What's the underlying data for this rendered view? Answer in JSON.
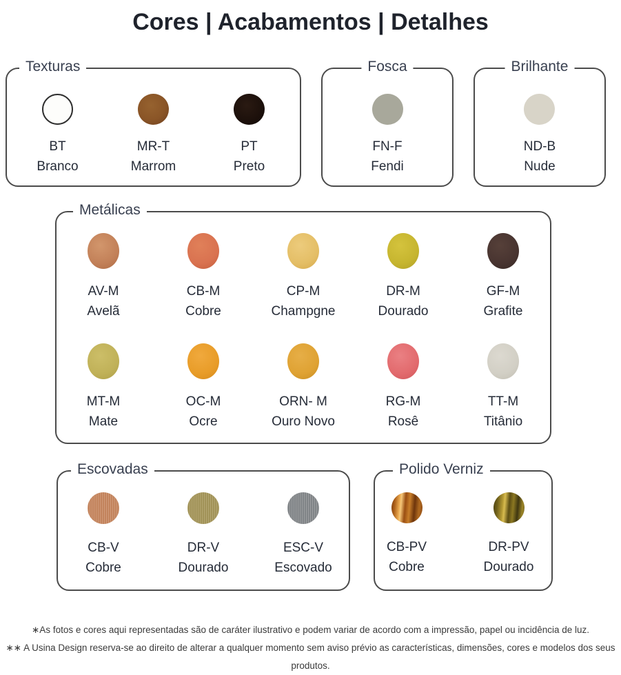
{
  "title": "Cores | Acabamentos | Detalhes",
  "groups": [
    {
      "label": "Texturas",
      "swatches": [
        {
          "code": "BT",
          "name": "Branco",
          "background": "#fdfdfb",
          "outline": true
        },
        {
          "code": "MR-T",
          "name": "Marrom",
          "background": "radial-gradient(circle at 42% 38%, #96622f, #8a5527 55%, #6f4120 95%)"
        },
        {
          "code": "PT",
          "name": "Preto",
          "background": "radial-gradient(circle at 42% 38%, #2a1a12, #1c100b 60%, #120a06 95%)"
        }
      ]
    },
    {
      "label": "Fosca",
      "swatches": [
        {
          "code": "FN-F",
          "name": "Fendi",
          "background": "#a8a89b"
        }
      ]
    },
    {
      "label": "Brilhante",
      "swatches": [
        {
          "code": "ND-B",
          "name": "Nude",
          "background": "#d8d4c8"
        }
      ]
    },
    {
      "label": "Metálicas",
      "swatches": [
        {
          "code": "AV-M",
          "name": "Avelã",
          "background": "radial-gradient(circle at 40% 35%, #d2966c, #c28058 60%, #b06d46 95%)"
        },
        {
          "code": "CB-M",
          "name": "Cobre",
          "background": "radial-gradient(circle at 40% 35%, #e08059, #d97250 60%, #c65f3e 95%)"
        },
        {
          "code": "CP-M",
          "name": "Champgne",
          "background": "radial-gradient(circle at 40% 35%, #eccb7c, #e4be66 60%, #d7ab4e 95%)"
        },
        {
          "code": "DR-M",
          "name": "Dourado",
          "background": "radial-gradient(circle at 40% 35%, #d4c33d, #c6b52f 60%, #b2a127 95%)"
        },
        {
          "code": "GF-M",
          "name": "Grafite",
          "background": "radial-gradient(circle at 40% 35%, #564039, #483430 60%, #382925 95%)"
        },
        {
          "code": "MT-M",
          "name": "Mate",
          "background": "radial-gradient(circle at 40% 35%, #ccbe68, #c0b158 60%, #afa049 95%)"
        },
        {
          "code": "OC-M",
          "name": "Ocre",
          "background": "radial-gradient(circle at 40% 35%, #f0a93d, #e89c28 60%, #d68b1d 95%)"
        },
        {
          "code": "ORN- M",
          "name": "Ouro Novo",
          "background": "radial-gradient(circle at 40% 35%, #e6ae47, #dfa233 60%, #ca8f24 95%)"
        },
        {
          "code": "RG-M",
          "name": "Rosê",
          "background": "radial-gradient(circle at 40% 35%, #ea8083, #e26a6d 60%, #d2585c 95%)"
        },
        {
          "code": "TT-M",
          "name": "Titânio",
          "background": "radial-gradient(circle at 40% 35%, #dcd9d0, #d2cfc5 60%, #c3c0b5 95%)"
        }
      ]
    },
    {
      "label": "Escovadas",
      "swatches": [
        {
          "code": "CB-V",
          "name": "Cobre",
          "background": "repeating-linear-gradient(90deg, rgba(255,255,255,0.28) 0px, rgba(255,255,255,0) 1px, rgba(120,60,20,0.18) 2px, rgba(255,255,255,0) 3px), #c98a63"
        },
        {
          "code": "DR-V",
          "name": "Dourado",
          "background": "repeating-linear-gradient(90deg, rgba(255,255,255,0.25) 0px, rgba(255,255,255,0) 1px, rgba(90,80,30,0.2) 2px, rgba(255,255,255,0) 3px), #a99a5e"
        },
        {
          "code": "ESC-V",
          "name": "Escovado",
          "background": "repeating-linear-gradient(90deg, rgba(255,255,255,0.3) 0px, rgba(255,255,255,0) 1px, rgba(50,55,60,0.22) 2px, rgba(255,255,255,0) 3px), #8a8d90"
        }
      ]
    },
    {
      "label": "Polido Verniz",
      "swatches": [
        {
          "code": "CB-PV",
          "name": "Cobre",
          "background": "linear-gradient(95deg, #7c3c0e 0%, #aa5e18 12%, #eaa84e 26%, #f6c87a 31%, #9a4e12 44%, #c87e2a 57%, #6e350c 72%, #b06a20 86%, #8a4510 100%)"
        },
        {
          "code": "DR-PV",
          "name": "Dourado",
          "background": "linear-gradient(95deg, #4a3f12 0%, #6e5f1a 14%, #b59a34 30%, #d8bc50 36%, #5c4e14 50%, #8c7822 62%, #3f3610 76%, #9c8628 90%, #6a5a18 100%)"
        }
      ]
    }
  ],
  "footnotes": [
    "∗As fotos e cores aqui representadas são de caráter ilustrativo e podem variar de acordo com a impressão, papel ou incidência de luz.",
    "∗∗ A Usina Design reserva-se ao direito de alterar a qualquer momento sem  aviso prévio  as características, dimensões, cores e modelos dos seus produtos."
  ]
}
